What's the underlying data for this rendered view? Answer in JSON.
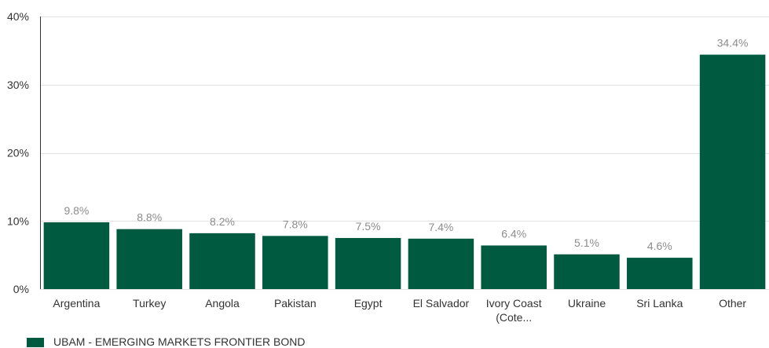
{
  "chart_data": {
    "type": "bar",
    "categories": [
      "Argentina",
      "Turkey",
      "Angola",
      "Pakistan",
      "Egypt",
      "El Salvador",
      "Ivory Coast (Cote...",
      "Ukraine",
      "Sri Lanka",
      "Other"
    ],
    "category_lines": [
      [
        "Argentina"
      ],
      [
        "Turkey"
      ],
      [
        "Angola"
      ],
      [
        "Pakistan"
      ],
      [
        "Egypt"
      ],
      [
        "El Salvador"
      ],
      [
        "Ivory Coast",
        "(Cote..."
      ],
      [
        "Ukraine"
      ],
      [
        "Sri Lanka"
      ],
      [
        "Other"
      ]
    ],
    "series": [
      {
        "name": "UBAM - EMERGING MARKETS FRONTIER BOND",
        "values": [
          9.8,
          8.8,
          8.2,
          7.8,
          7.5,
          7.4,
          6.4,
          5.1,
          4.6,
          34.4
        ],
        "labels": [
          "9.8%",
          "8.8%",
          "8.2%",
          "7.8%",
          "7.5%",
          "7.4%",
          "6.4%",
          "5.1%",
          "4.6%",
          "34.4%"
        ],
        "color": "#005a3f"
      }
    ],
    "ylim": [
      0,
      40
    ],
    "yticks": [
      0,
      10,
      20,
      30,
      40
    ],
    "ytick_labels": [
      "0%",
      "10%",
      "20%",
      "30%",
      "40%"
    ],
    "xlabel": "",
    "ylabel": "",
    "grid": true,
    "legend_position": "bottom-left"
  }
}
